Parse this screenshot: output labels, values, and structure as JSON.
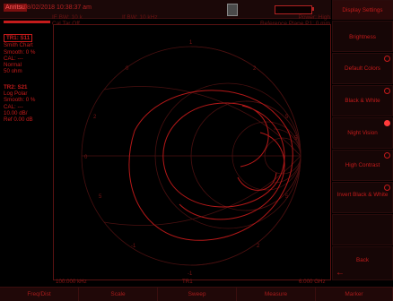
{
  "header": {
    "model": "Anritsu",
    "datetime": "08/02/2018 10:38:37 am",
    "info_col1": [
      "IF BW: 10 k",
      "Cal Tar Off"
    ],
    "info_col2": "If BW: 10 kHz",
    "info_col3": [
      "Power: High",
      "Reference Plane P1: 0 mm"
    ]
  },
  "traces": [
    {
      "head": "TR1: S11",
      "lines": [
        "Smith Chart",
        "Smooth: 0 %",
        "CAL: ---",
        "Normal",
        "50 ohm"
      ]
    },
    {
      "head": "TR2: S21",
      "lines": [
        "Log Polar",
        "Smooth: 0 %",
        "CAL: ---",
        "10.00 dB/",
        "Ref 0.00 dB"
      ]
    }
  ],
  "chart": {
    "labels": {
      "top": "1",
      "bottom": "-1",
      "left": "0",
      "right": "5",
      "ul": "0",
      "ur": "2",
      "ll": "-1",
      "lr": "2",
      "ml": "2",
      "mr": "5",
      "bl": "5",
      "br": "5"
    },
    "freq_start": "100.000 kHz",
    "marker": "TR1",
    "freq_stop": "6.000 GHz"
  },
  "softkeys": {
    "title": "Display Settings",
    "items": [
      {
        "label": "Brightness",
        "radio": false,
        "selected": false
      },
      {
        "label": "Default Colors",
        "radio": true,
        "selected": false
      },
      {
        "label": "Black & White",
        "radio": true,
        "selected": false
      },
      {
        "label": "Night Vision",
        "radio": true,
        "selected": true
      },
      {
        "label": "High Contrast",
        "radio": true,
        "selected": false
      },
      {
        "label": "Invert Black & White",
        "radio": true,
        "selected": false
      },
      {
        "label": "",
        "radio": false,
        "selected": false
      },
      {
        "label": "Back",
        "radio": false,
        "selected": false
      }
    ]
  },
  "bottom_tabs": [
    "Freq/Dist",
    "Scale",
    "Sweep",
    "Measure",
    "Marker"
  ]
}
